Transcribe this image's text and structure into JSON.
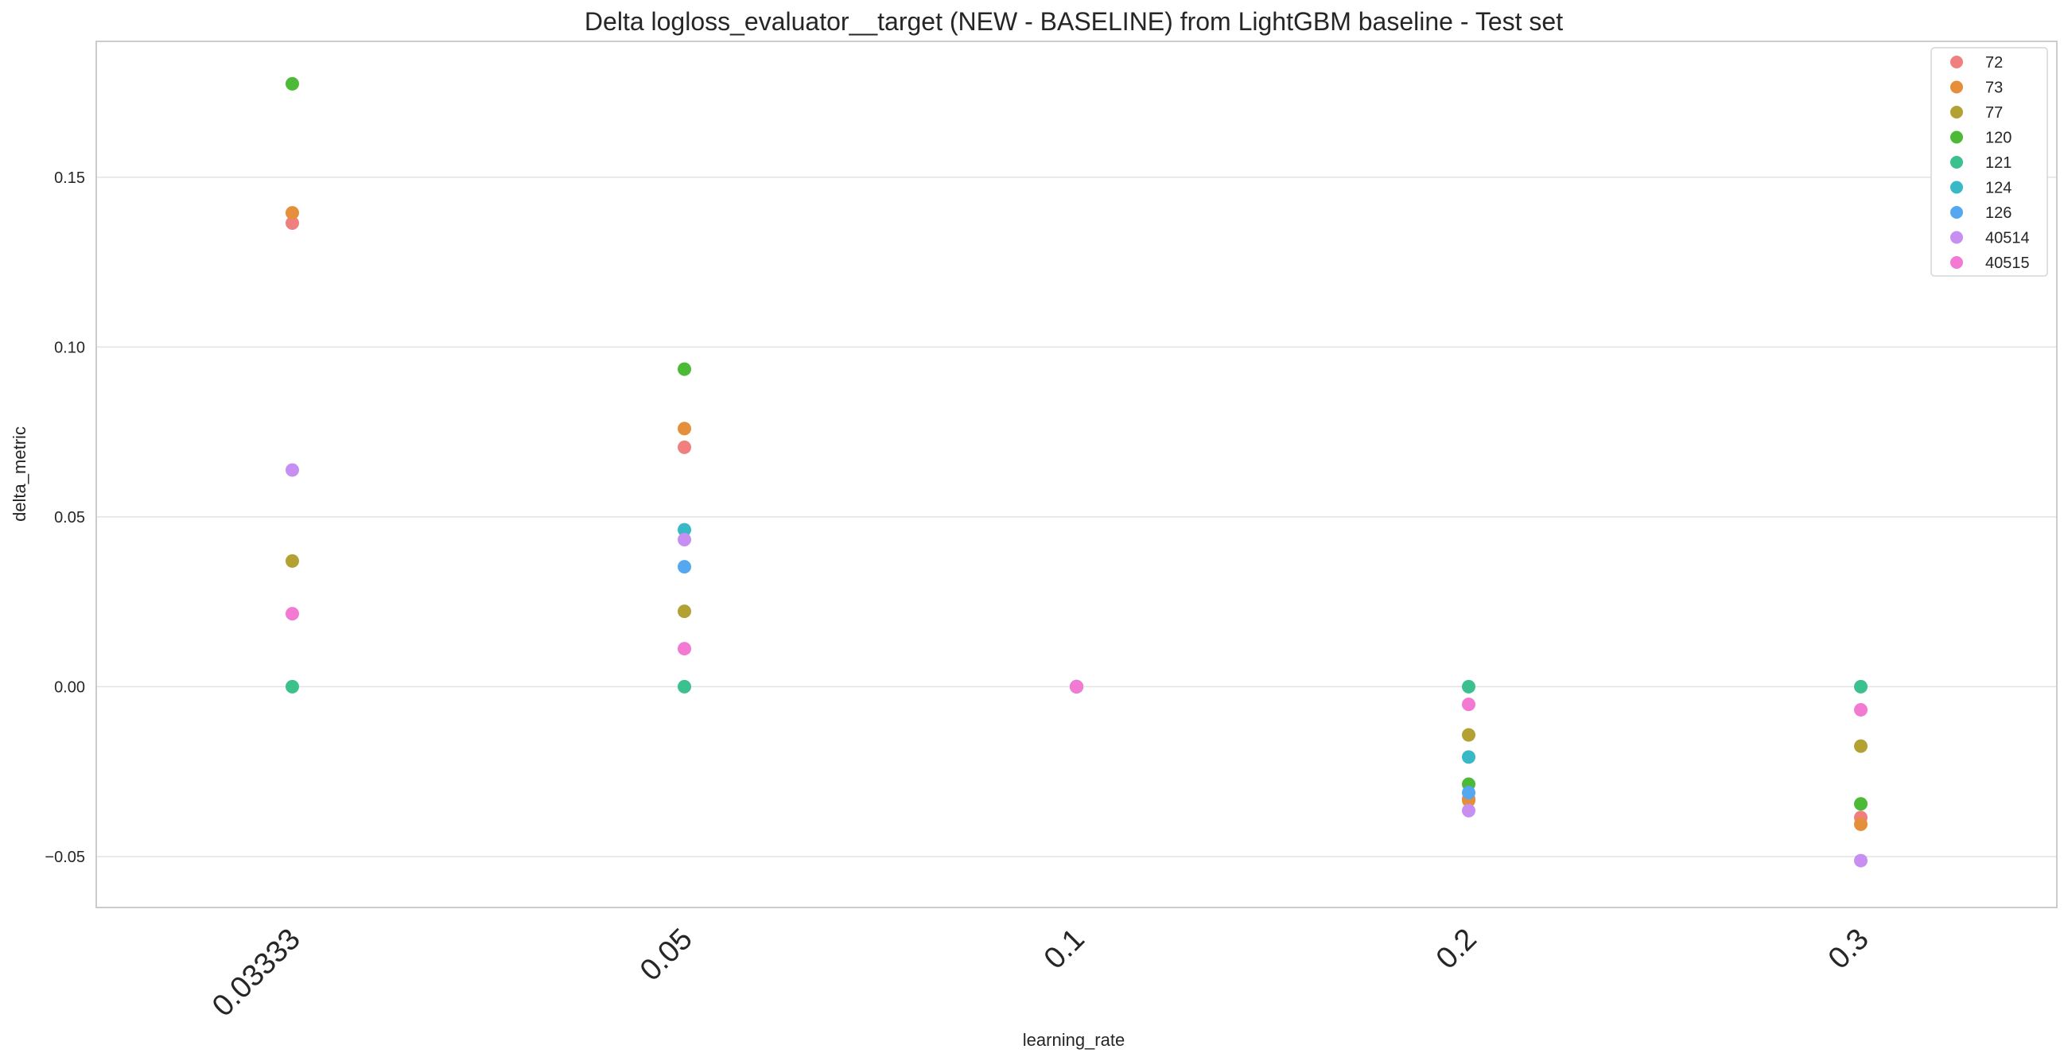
{
  "chart_data": {
    "type": "scatter",
    "title": "Delta logloss_evaluator__target (NEW - BASELINE) from LightGBM baseline - Test set",
    "xlabel": "learning_rate",
    "ylabel": "delta_metric",
    "categories": [
      "0.03333",
      "0.05",
      "0.1",
      "0.2",
      "0.3"
    ],
    "ylim": [
      -0.065,
      0.19
    ],
    "yticks": [
      {
        "value": -0.05,
        "label": "−0.05"
      },
      {
        "value": 0.0,
        "label": "0.00"
      },
      {
        "value": 0.05,
        "label": "0.05"
      },
      {
        "value": 0.1,
        "label": "0.10"
      },
      {
        "value": 0.15,
        "label": "0.15"
      }
    ],
    "grid": true,
    "legend_position": "top-right",
    "series": [
      {
        "name": "72",
        "color": "#f08080",
        "values": [
          0.1365,
          0.0705,
          0.0,
          -0.033,
          -0.0385
        ]
      },
      {
        "name": "73",
        "color": "#e58e3b",
        "values": [
          0.1395,
          0.076,
          0.0,
          -0.0335,
          -0.0405
        ]
      },
      {
        "name": "77",
        "color": "#b3a134",
        "values": [
          0.037,
          0.0222,
          0.0,
          -0.0142,
          -0.0175
        ]
      },
      {
        "name": "120",
        "color": "#4cba37",
        "values": [
          0.1775,
          0.0935,
          0.0,
          -0.0287,
          -0.0345
        ]
      },
      {
        "name": "121",
        "color": "#3bc08e",
        "values": [
          0.0,
          0.0,
          0.0,
          0.0,
          0.0
        ]
      },
      {
        "name": "124",
        "color": "#38b9c5",
        "values": [
          null,
          0.0462,
          0.0,
          -0.0207,
          null
        ]
      },
      {
        "name": "126",
        "color": "#55a8ef",
        "values": [
          null,
          0.0353,
          0.0,
          -0.0312,
          null
        ]
      },
      {
        "name": "40514",
        "color": "#c78ff1",
        "values": [
          0.0638,
          0.0433,
          0.0,
          -0.0365,
          -0.0512
        ]
      },
      {
        "name": "40515",
        "color": "#f27ad3",
        "values": [
          0.0215,
          0.0112,
          0.0,
          -0.0052,
          -0.0068
        ]
      }
    ]
  }
}
